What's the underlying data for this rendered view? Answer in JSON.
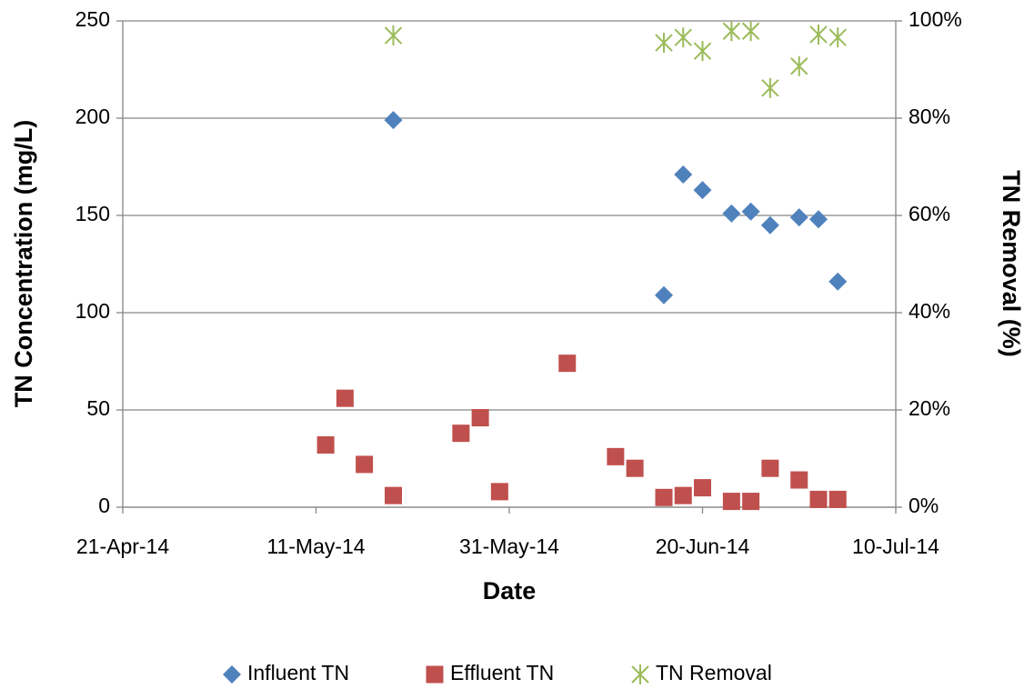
{
  "chart_data": {
    "type": "scatter",
    "x_label": "Date",
    "y_label": "TN Concentration (mg/L)",
    "y2_label": "TN Removal (%)",
    "xlim": [
      "2014-04-21",
      "2014-07-10"
    ],
    "xticks": [
      {
        "value": "2014-04-21",
        "label": "21-Apr-14"
      },
      {
        "value": "2014-05-11",
        "label": "11-May-14"
      },
      {
        "value": "2014-05-31",
        "label": "31-May-14"
      },
      {
        "value": "2014-06-20",
        "label": "20-Jun-14"
      },
      {
        "value": "2014-07-10",
        "label": "10-Jul-14"
      }
    ],
    "ylim": [
      0,
      250
    ],
    "yticks": [
      0,
      50,
      100,
      150,
      200,
      250
    ],
    "y2lim": [
      0,
      100
    ],
    "y2ticks": [
      {
        "value": 0,
        "label": "0%"
      },
      {
        "value": 20,
        "label": "20%"
      },
      {
        "value": 40,
        "label": "40%"
      },
      {
        "value": 60,
        "label": "60%"
      },
      {
        "value": 80,
        "label": "80%"
      },
      {
        "value": 100,
        "label": "100%"
      }
    ],
    "grid": true,
    "legend": "bottom",
    "series": [
      {
        "name": "Influent TN",
        "color": "#4f81bd",
        "marker": "diamond",
        "x": [
          "2014-05-19",
          "2014-06-16",
          "2014-06-18",
          "2014-06-20",
          "2014-06-23",
          "2014-06-25",
          "2014-06-27",
          "2014-06-30",
          "2014-07-02",
          "2014-07-04"
        ],
        "values": [
          199,
          109,
          171,
          163,
          151,
          152,
          145,
          149,
          148,
          116
        ]
      },
      {
        "name": "Effluent TN",
        "color": "#c0504d",
        "marker": "square",
        "x": [
          "2014-05-12",
          "2014-05-14",
          "2014-05-16",
          "2014-05-19",
          "2014-05-26",
          "2014-05-28",
          "2014-05-30",
          "2014-06-06",
          "2014-06-11",
          "2014-06-13",
          "2014-06-16",
          "2014-06-18",
          "2014-06-20",
          "2014-06-23",
          "2014-06-25",
          "2014-06-27",
          "2014-06-30",
          "2014-07-02",
          "2014-07-04"
        ],
        "values": [
          32,
          56,
          22,
          6,
          38,
          46,
          8,
          74,
          26,
          20,
          5,
          6,
          10,
          3,
          3,
          20,
          14,
          4,
          4
        ]
      },
      {
        "name": "TN Removal",
        "color": "#9bbb59",
        "marker": "star",
        "axis": "y2",
        "x": [
          "2014-05-19",
          "2014-06-16",
          "2014-06-18",
          "2014-06-20",
          "2014-06-23",
          "2014-06-25",
          "2014-06-27",
          "2014-06-30",
          "2014-07-02",
          "2014-07-04"
        ],
        "values": [
          97.0,
          95.5,
          96.6,
          93.8,
          97.9,
          97.9,
          86.2,
          90.7,
          97.2,
          96.6
        ]
      }
    ]
  }
}
